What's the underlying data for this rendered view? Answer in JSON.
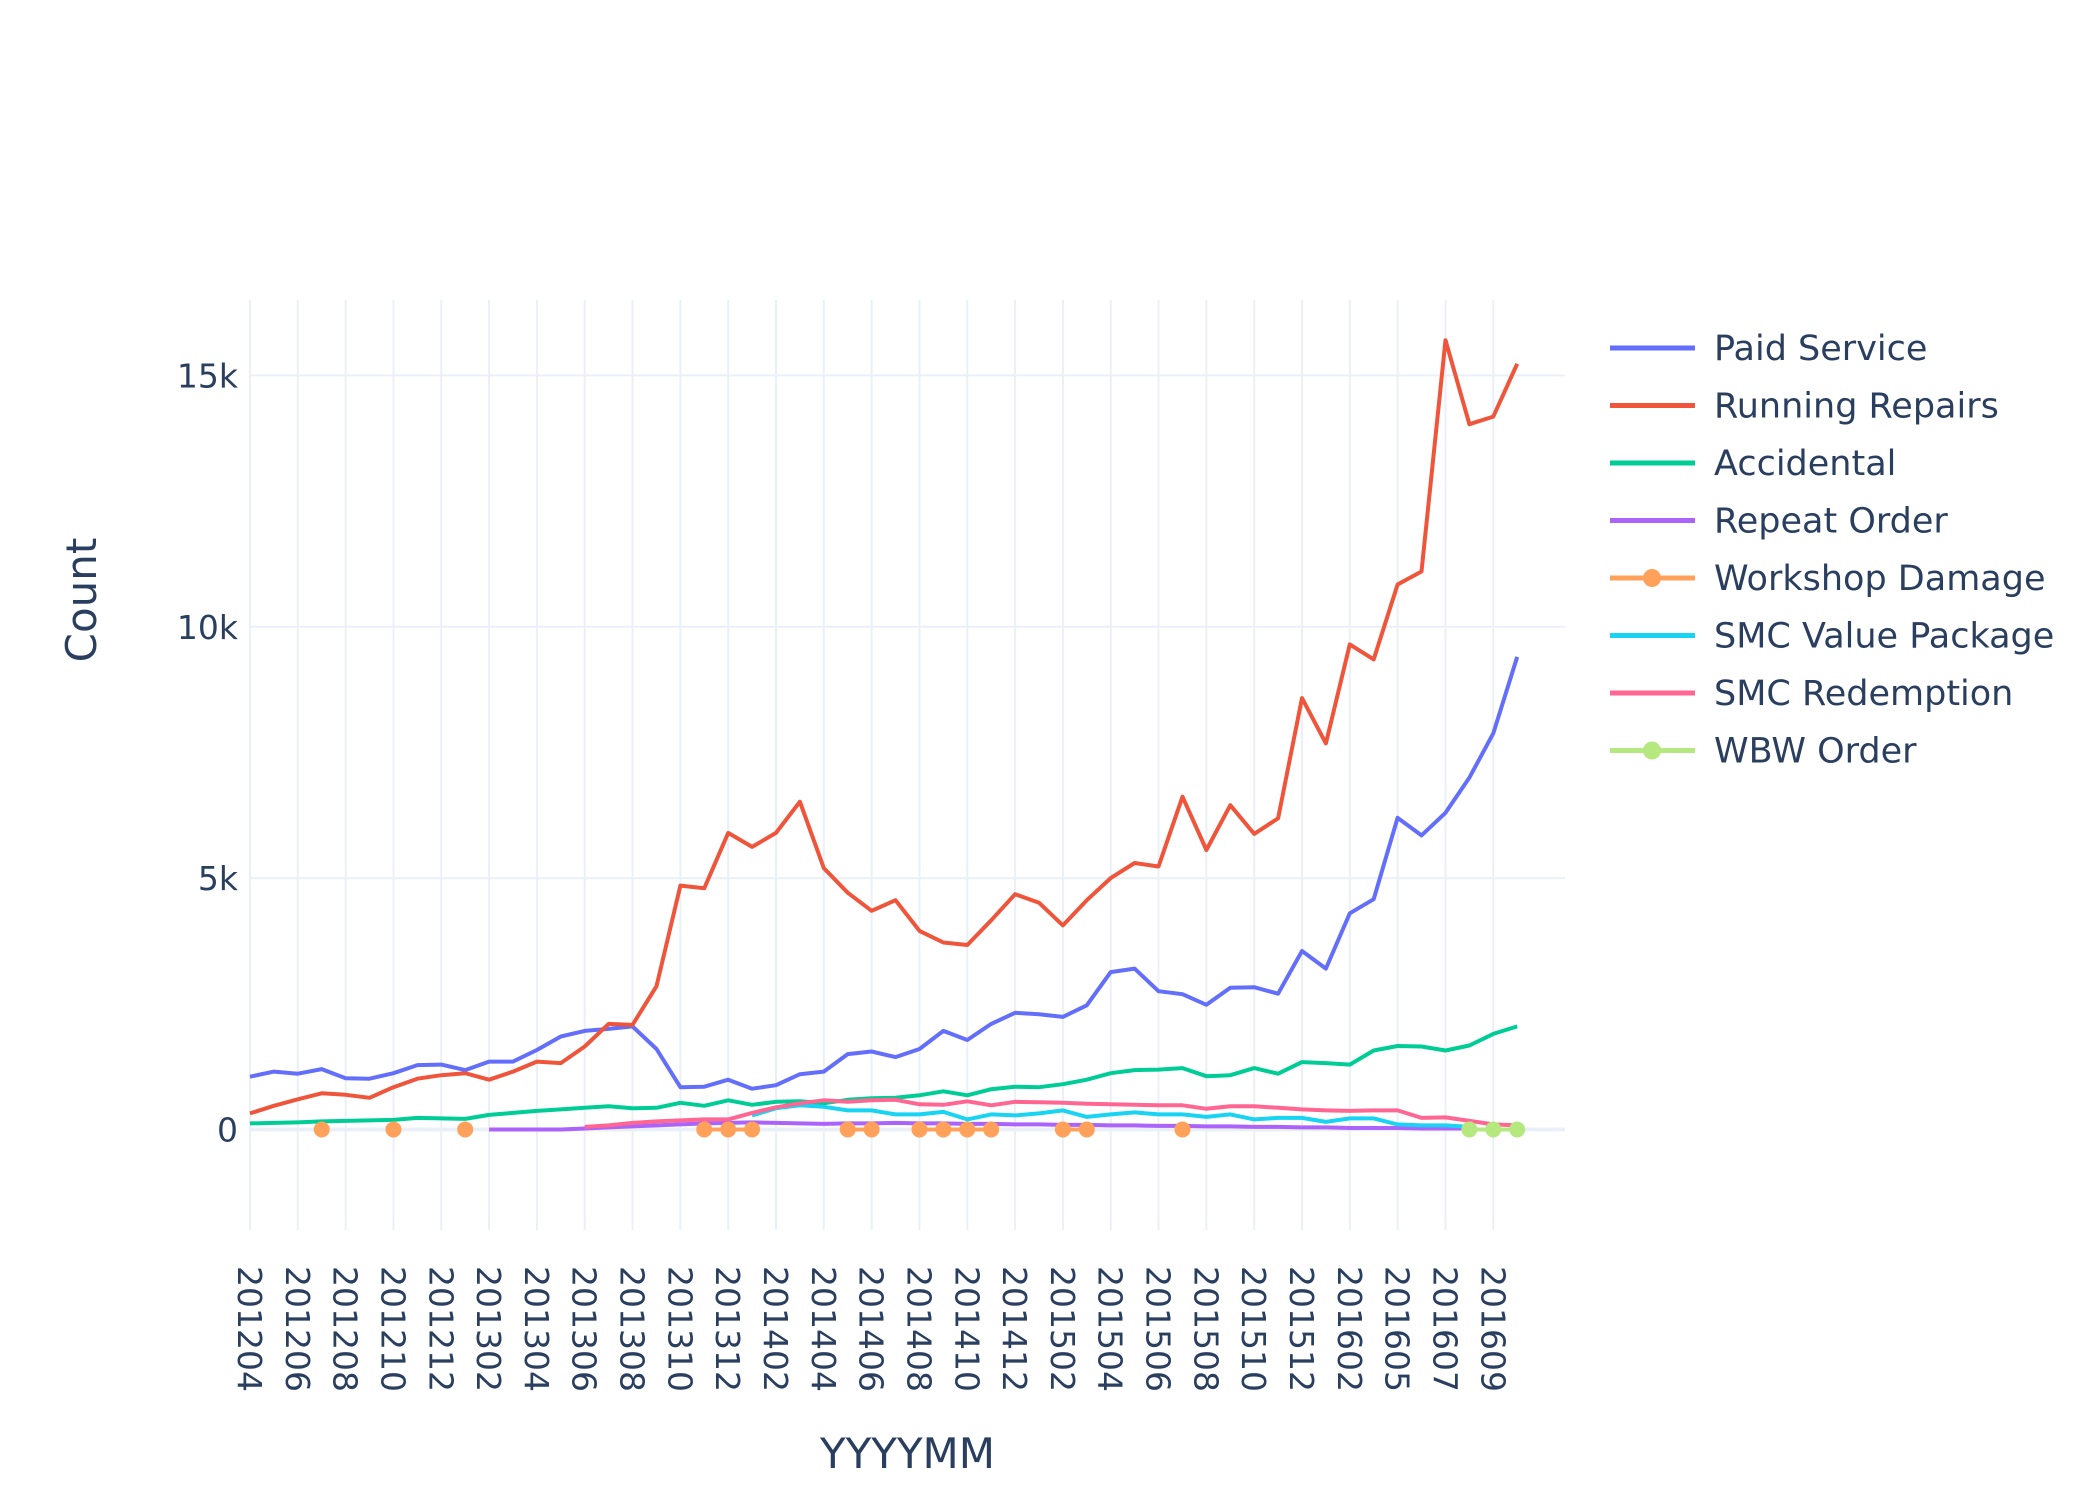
{
  "chart_data": {
    "type": "line",
    "xlabel": "YYYYMM",
    "ylabel": "Count",
    "ylim": [
      -2000,
      16500
    ],
    "y_ticks": [
      0,
      5000,
      10000,
      15000
    ],
    "y_tick_labels": [
      "0",
      "5k",
      "10k",
      "15k"
    ],
    "x_tick_labels": [
      "201204",
      "201206",
      "201208",
      "201210",
      "201212",
      "201302",
      "201304",
      "201306",
      "201308",
      "201310",
      "201312",
      "201402",
      "201404",
      "201406",
      "201408",
      "201410",
      "201412",
      "201502",
      "201504",
      "201506",
      "201508",
      "201510",
      "201512",
      "201602",
      "201605",
      "201607",
      "201609"
    ],
    "categories": [
      "201204",
      "201205",
      "201206",
      "201207",
      "201208",
      "201209",
      "201210",
      "201211",
      "201212",
      "201301",
      "201302",
      "201303",
      "201304",
      "201305",
      "201306",
      "201307",
      "201308",
      "201309",
      "201310",
      "201311",
      "201312",
      "201401",
      "201402",
      "201403",
      "201404",
      "201405",
      "201406",
      "201407",
      "201408",
      "201409",
      "201410",
      "201411",
      "201412",
      "201501",
      "201502",
      "201503",
      "201504",
      "201505",
      "201506",
      "201507",
      "201508",
      "201509",
      "201510",
      "201511",
      "201512",
      "201601",
      "201602",
      "201604",
      "201605",
      "201606",
      "201607",
      "201608",
      "201609",
      "201610",
      "201611"
    ],
    "grid": true,
    "legend_position": "right",
    "series": [
      {
        "name": "Paid Service",
        "color": "#636efa",
        "mode": "lines",
        "values": [
          1050,
          1150,
          1110,
          1200,
          1020,
          1010,
          1120,
          1280,
          1290,
          1180,
          1350,
          1350,
          1580,
          1850,
          1960,
          2000,
          2050,
          1600,
          840,
          850,
          990,
          810,
          880,
          1100,
          1150,
          1500,
          1550,
          1440,
          1600,
          1960,
          1780,
          2100,
          2320,
          2290,
          2240,
          2470,
          3130,
          3200,
          2750,
          2690,
          2480,
          2820,
          2830,
          2700,
          3550,
          3200,
          4300,
          4580,
          6200,
          5850,
          6300,
          7000,
          7880,
          9400,
          null
        ]
      },
      {
        "name": "Running Repairs",
        "color": "#ef553b",
        "mode": "lines",
        "values": [
          320,
          470,
          600,
          720,
          690,
          630,
          840,
          1010,
          1080,
          1120,
          990,
          1150,
          1350,
          1320,
          1650,
          2100,
          2080,
          2850,
          4850,
          4800,
          5900,
          5620,
          5900,
          6520,
          5200,
          4710,
          4350,
          4560,
          3950,
          3720,
          3670,
          4160,
          4680,
          4510,
          4060,
          4560,
          5000,
          5300,
          5230,
          6620,
          5560,
          6450,
          5880,
          6190,
          8580,
          7680,
          9650,
          9350,
          10840,
          11100,
          15700,
          14030,
          14180,
          15230,
          null
        ]
      },
      {
        "name": "Accidental",
        "color": "#00cc96",
        "mode": "lines",
        "values": [
          120,
          130,
          140,
          160,
          170,
          180,
          190,
          230,
          220,
          210,
          290,
          330,
          370,
          400,
          430,
          460,
          420,
          430,
          530,
          470,
          580,
          490,
          550,
          560,
          520,
          590,
          620,
          630,
          680,
          760,
          680,
          800,
          850,
          840,
          900,
          990,
          1120,
          1180,
          1190,
          1220,
          1060,
          1080,
          1220,
          1110,
          1340,
          1320,
          1290,
          1570,
          1660,
          1650,
          1570,
          1670,
          1900,
          2050,
          null
        ]
      },
      {
        "name": "Repeat Order",
        "color": "#ab63fa",
        "mode": "lines",
        "values": [
          null,
          null,
          null,
          null,
          null,
          null,
          null,
          null,
          null,
          null,
          0,
          0,
          0,
          0,
          20,
          40,
          60,
          80,
          100,
          120,
          130,
          140,
          130,
          120,
          110,
          120,
          120,
          130,
          120,
          120,
          110,
          110,
          100,
          100,
          90,
          90,
          80,
          80,
          70,
          70,
          60,
          60,
          50,
          50,
          40,
          40,
          30,
          30,
          30,
          20,
          20,
          20,
          null,
          null,
          null
        ]
      },
      {
        "name": "Workshop Damage",
        "color": "#ffa15a",
        "mode": "lines+markers",
        "values": [
          null,
          null,
          null,
          0,
          null,
          null,
          0,
          null,
          null,
          0,
          null,
          null,
          null,
          null,
          null,
          null,
          null,
          null,
          null,
          0,
          0,
          0,
          null,
          null,
          null,
          0,
          0,
          null,
          0,
          0,
          0,
          0,
          null,
          null,
          0,
          0,
          null,
          null,
          null,
          0,
          null,
          null,
          null,
          null,
          null,
          null,
          null,
          null,
          null,
          null,
          null,
          null,
          null,
          null,
          null
        ]
      },
      {
        "name": "SMC Value Package",
        "color": "#19d3f3",
        "mode": "lines",
        "values": [
          null,
          null,
          null,
          null,
          null,
          null,
          null,
          null,
          null,
          null,
          null,
          null,
          null,
          null,
          null,
          null,
          null,
          null,
          null,
          null,
          null,
          280,
          420,
          480,
          450,
          380,
          380,
          300,
          300,
          350,
          200,
          300,
          280,
          320,
          380,
          250,
          300,
          340,
          300,
          300,
          250,
          300,
          200,
          230,
          230,
          150,
          220,
          220,
          100,
          80,
          80,
          50,
          null,
          null,
          null
        ]
      },
      {
        "name": "SMC Redemption",
        "color": "#ff6692",
        "mode": "lines",
        "values": [
          null,
          null,
          null,
          null,
          null,
          null,
          null,
          null,
          null,
          null,
          null,
          null,
          null,
          null,
          50,
          80,
          130,
          160,
          180,
          200,
          200,
          330,
          440,
          520,
          580,
          550,
          580,
          590,
          500,
          490,
          560,
          480,
          550,
          540,
          530,
          510,
          500,
          490,
          480,
          480,
          410,
          460,
          460,
          430,
          400,
          380,
          370,
          380,
          380,
          230,
          240,
          170,
          100,
          80,
          null
        ]
      },
      {
        "name": "WBW Order",
        "color": "#b6e880",
        "mode": "lines+markers",
        "values": [
          null,
          null,
          null,
          null,
          null,
          null,
          null,
          null,
          null,
          null,
          null,
          null,
          null,
          null,
          null,
          null,
          null,
          null,
          null,
          null,
          null,
          null,
          null,
          null,
          null,
          null,
          null,
          null,
          null,
          null,
          null,
          null,
          null,
          null,
          null,
          null,
          null,
          null,
          null,
          null,
          null,
          null,
          null,
          null,
          null,
          null,
          null,
          null,
          null,
          null,
          null,
          0,
          0,
          0,
          null
        ]
      }
    ]
  }
}
